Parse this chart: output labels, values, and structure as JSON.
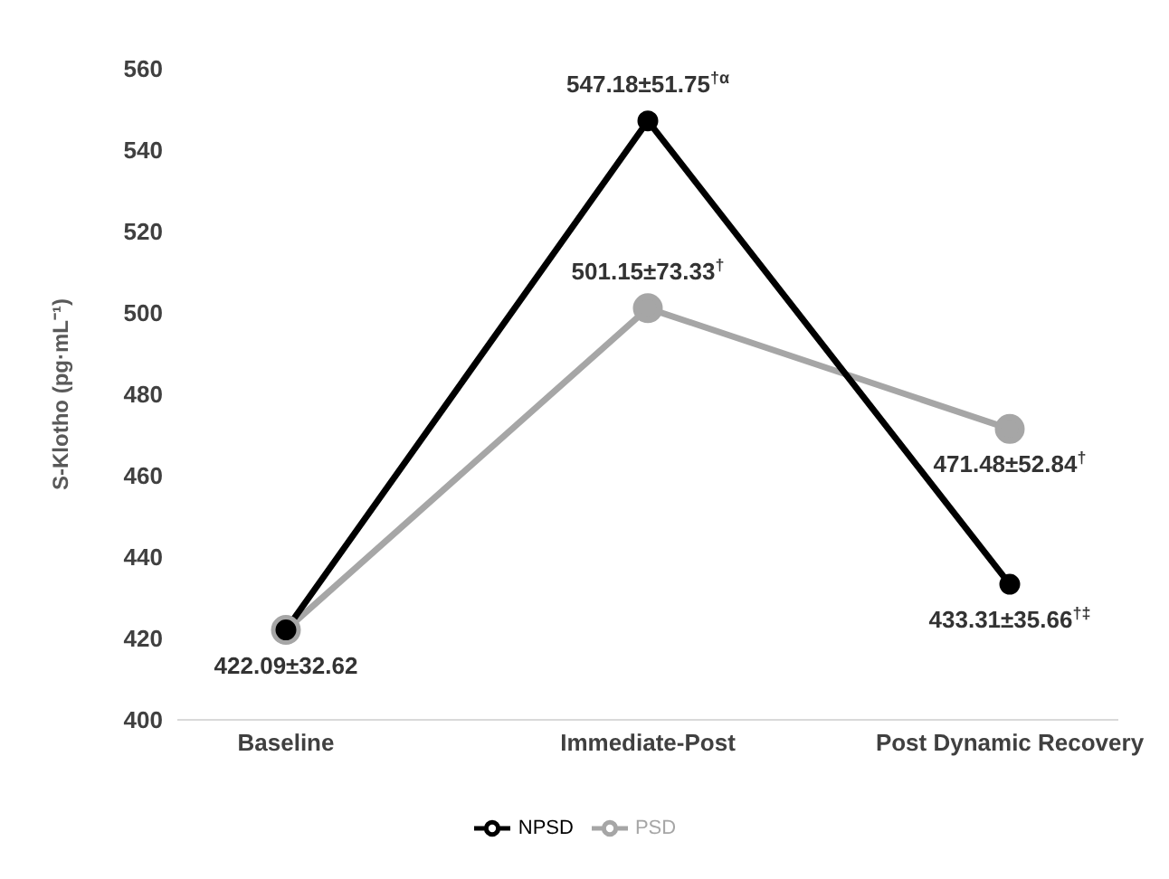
{
  "chart_data": {
    "type": "line",
    "ylabel": "S-Klotho (pg·mL⁻¹)",
    "categories": [
      "Baseline",
      "Immediate-Post",
      "Post Dynamic Recovery"
    ],
    "series": [
      {
        "name": "PSD",
        "color": "#a6a6a6",
        "values": [
          422.09,
          501.15,
          471.48
        ],
        "value_labels": [
          null,
          "501.15±73.33$^{†}$",
          "471.48±52.84$^{†}$"
        ]
      },
      {
        "name": "NPSD",
        "color": "#000000",
        "values": [
          422.09,
          547.18,
          433.31
        ],
        "value_labels": [
          "422.09±32.62",
          "547.18±51.75$^{†α}$",
          "433.31±35.66$^{†‡}$"
        ]
      }
    ],
    "ylim": [
      400,
      560
    ],
    "yticks": [
      400,
      420,
      440,
      460,
      480,
      500,
      520,
      540,
      560
    ],
    "grid": false,
    "legend": "bottom",
    "marker": "circle",
    "line_style": "solid"
  }
}
